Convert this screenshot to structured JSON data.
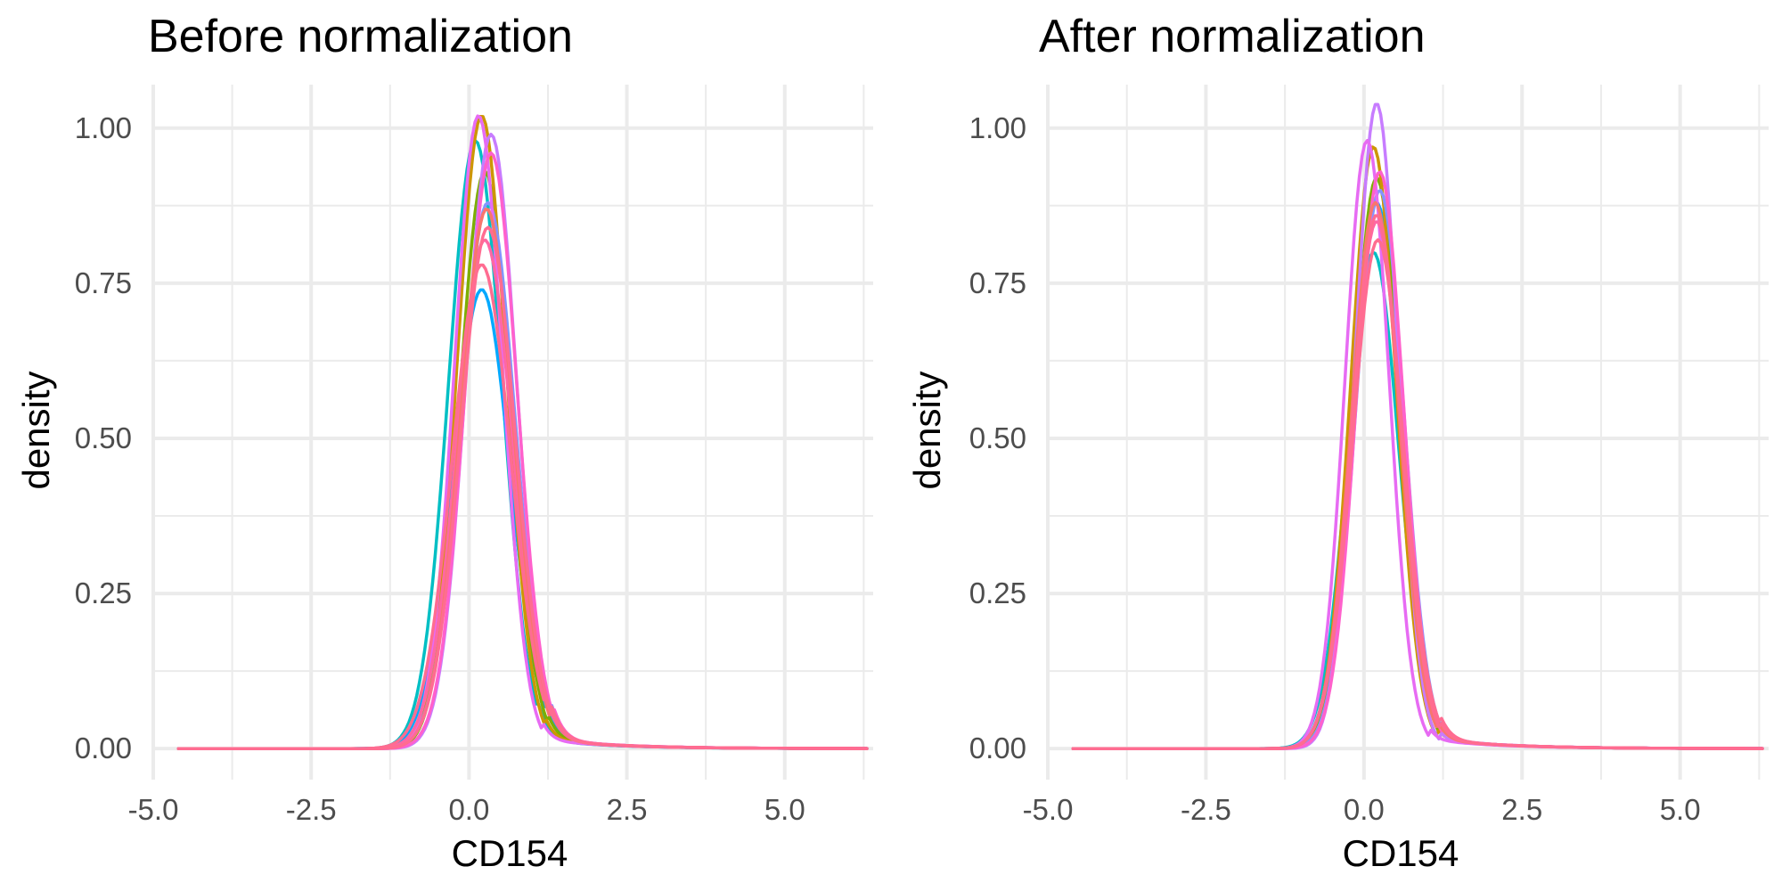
{
  "chart_data": [
    {
      "type": "line",
      "title": "Before normalization",
      "xlabel": "CD154",
      "ylabel": "density",
      "xlim": [
        -5.0,
        6.4
      ],
      "ylim": [
        -0.05,
        1.07
      ],
      "x_ticks": [
        -5.0,
        -2.5,
        0.0,
        2.5,
        5.0
      ],
      "x_tick_labels": [
        "-5.0",
        "-2.5",
        "0.0",
        "2.5",
        "5.0"
      ],
      "y_ticks": [
        0.0,
        0.25,
        0.5,
        0.75,
        1.0
      ],
      "y_tick_labels": [
        "0.00",
        "0.25",
        "0.50",
        "0.75",
        "1.00"
      ],
      "grid": true,
      "legend": "none",
      "x_range_of_data": [
        -4.6,
        6.3
      ],
      "series": [
        {
          "color": "#00BFC4",
          "peak_x": 0.1,
          "peak": 0.98,
          "sigma": 0.42
        },
        {
          "color": "#00A9FF",
          "peak_x": 0.2,
          "peak": 0.74,
          "sigma": 0.45
        },
        {
          "color": "#7CAE00",
          "peak_x": 0.25,
          "peak": 0.93,
          "sigma": 0.4
        },
        {
          "color": "#CD9600",
          "peak_x": 0.2,
          "peak": 1.02,
          "sigma": 0.39
        },
        {
          "color": "#8494FF",
          "peak_x": 0.3,
          "peak": 0.88,
          "sigma": 0.43
        },
        {
          "color": "#C77CFF",
          "peak_x": 0.35,
          "peak": 0.99,
          "sigma": 0.4
        },
        {
          "color": "#E76BF3",
          "peak_x": 0.15,
          "peak": 1.02,
          "sigma": 0.38
        },
        {
          "color": "#FF61CC",
          "peak_x": 0.35,
          "peak": 0.96,
          "sigma": 0.41
        },
        {
          "color": "#FF67A4",
          "peak_x": 0.25,
          "peak": 0.82,
          "sigma": 0.44
        },
        {
          "color": "#F8766D",
          "peak_x": 0.28,
          "peak": 0.87,
          "sigma": 0.42
        },
        {
          "color": "#FF6C91",
          "peak_x": 0.2,
          "peak": 0.78,
          "sigma": 0.46
        },
        {
          "color": "#FF6C91",
          "peak_x": 0.3,
          "peak": 0.84,
          "sigma": 0.43
        }
      ]
    },
    {
      "type": "line",
      "title": "After normalization",
      "xlabel": "CD154",
      "ylabel": "density",
      "xlim": [
        -5.0,
        6.4
      ],
      "ylim": [
        -0.05,
        1.07
      ],
      "x_ticks": [
        -5.0,
        -2.5,
        0.0,
        2.5,
        5.0
      ],
      "x_tick_labels": [
        "-5.0",
        "-2.5",
        "0.0",
        "2.5",
        "5.0"
      ],
      "y_ticks": [
        0.0,
        0.25,
        0.5,
        0.75,
        1.0
      ],
      "y_tick_labels": [
        "0.00",
        "0.25",
        "0.50",
        "0.75",
        "1.00"
      ],
      "grid": true,
      "legend": "none",
      "x_range_of_data": [
        -4.6,
        6.3
      ],
      "series": [
        {
          "color": "#00BFC4",
          "peak_x": 0.15,
          "peak": 0.8,
          "sigma": 0.4
        },
        {
          "color": "#00A9FF",
          "peak_x": 0.2,
          "peak": 0.88,
          "sigma": 0.39
        },
        {
          "color": "#7CAE00",
          "peak_x": 0.2,
          "peak": 0.92,
          "sigma": 0.37
        },
        {
          "color": "#CD9600",
          "peak_x": 0.15,
          "peak": 0.97,
          "sigma": 0.36
        },
        {
          "color": "#8494FF",
          "peak_x": 0.25,
          "peak": 0.9,
          "sigma": 0.38
        },
        {
          "color": "#C77CFF",
          "peak_x": 0.2,
          "peak": 1.04,
          "sigma": 0.34
        },
        {
          "color": "#E76BF3",
          "peak_x": 0.05,
          "peak": 0.98,
          "sigma": 0.35
        },
        {
          "color": "#FF61CC",
          "peak_x": 0.25,
          "peak": 0.93,
          "sigma": 0.37
        },
        {
          "color": "#FF67A4",
          "peak_x": 0.2,
          "peak": 0.85,
          "sigma": 0.39
        },
        {
          "color": "#F8766D",
          "peak_x": 0.18,
          "peak": 0.88,
          "sigma": 0.38
        },
        {
          "color": "#FF6C91",
          "peak_x": 0.22,
          "peak": 0.82,
          "sigma": 0.4
        },
        {
          "color": "#FF6C91",
          "peak_x": 0.2,
          "peak": 0.86,
          "sigma": 0.39
        }
      ]
    }
  ]
}
